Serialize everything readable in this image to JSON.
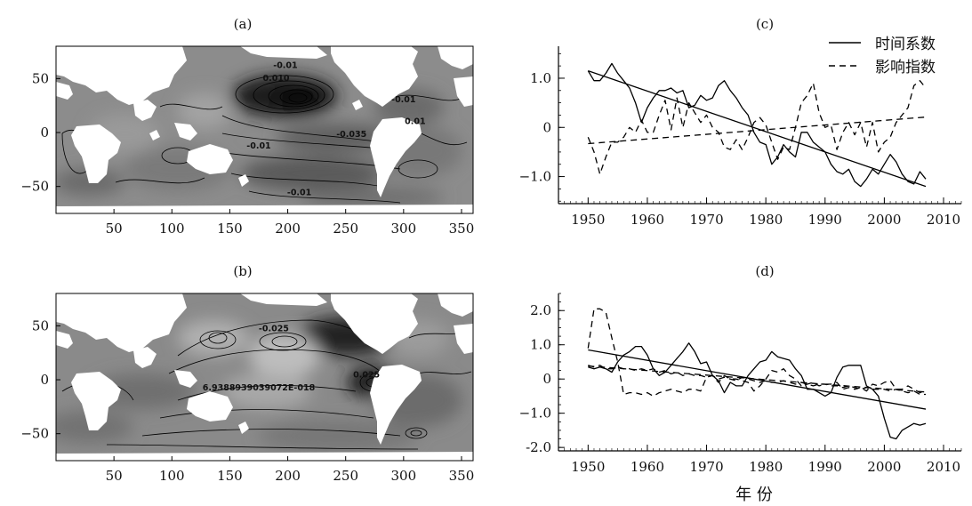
{
  "chart_data": [
    {
      "panel": "(a)",
      "type": "heatmap",
      "title": "(a)",
      "x_ticks": [
        50,
        100,
        150,
        200,
        250,
        300,
        350
      ],
      "y_ticks": [
        50,
        0,
        -50
      ],
      "y_tick_labels": [
        "50",
        "0",
        "−50"
      ],
      "xlim": [
        0,
        360
      ],
      "ylim": [
        -75,
        80
      ],
      "contour_labels": [
        {
          "text": "-0.01",
          "lon": 198,
          "lat": 60
        },
        {
          "text": "0.010",
          "lon": 190,
          "lat": 48
        },
        {
          "text": "-0.01",
          "lon": 300,
          "lat": 28
        },
        {
          "text": "0.01",
          "lon": 310,
          "lat": 8
        },
        {
          "text": "-0.035",
          "lon": 255,
          "lat": -4
        },
        {
          "text": "-0.01",
          "lon": 175,
          "lat": -15
        },
        {
          "text": "-0.01",
          "lon": 210,
          "lat": -58
        }
      ]
    },
    {
      "panel": "(b)",
      "type": "heatmap",
      "title": "(b)",
      "x_ticks": [
        50,
        100,
        150,
        200,
        250,
        300,
        350
      ],
      "y_ticks": [
        50,
        0,
        -50
      ],
      "y_tick_labels": [
        "50",
        "0",
        "−50"
      ],
      "xlim": [
        0,
        360
      ],
      "ylim": [
        -75,
        80
      ],
      "contour_labels": [
        {
          "text": "-0.025",
          "lon": 188,
          "lat": 45
        },
        {
          "text": "0.025",
          "lon": 268,
          "lat": 2
        },
        {
          "text": "6.9388939039072E-018",
          "lon": 175,
          "lat": -10
        }
      ]
    },
    {
      "panel": "(c)",
      "type": "line",
      "title": "(c)",
      "x_ticks": [
        1950,
        1960,
        1970,
        1980,
        1990,
        2000,
        2010
      ],
      "y_ticks": [
        1.0,
        0,
        -1.0
      ],
      "y_tick_labels": [
        "1.0",
        "0",
        "−1.0"
      ],
      "xlim": [
        1945,
        2013
      ],
      "ylim": [
        -1.55,
        1.65
      ],
      "legend": [
        "时间系数",
        "影响指数"
      ],
      "legend_position": "top-right",
      "x": [
        1950,
        1951,
        1952,
        1953,
        1954,
        1955,
        1956,
        1957,
        1958,
        1959,
        1960,
        1961,
        1962,
        1963,
        1964,
        1965,
        1966,
        1967,
        1968,
        1969,
        1970,
        1971,
        1972,
        1973,
        1974,
        1975,
        1976,
        1977,
        1978,
        1979,
        1980,
        1981,
        1982,
        1983,
        1984,
        1985,
        1986,
        1987,
        1988,
        1989,
        1990,
        1991,
        1992,
        1993,
        1994,
        1995,
        1996,
        1997,
        1998,
        1999,
        2000,
        2001,
        2002,
        2003,
        2004,
        2005,
        2006,
        2007
      ],
      "series": [
        {
          "name": "时间系数",
          "style": "solid",
          "values": [
            1.15,
            0.95,
            0.95,
            1.1,
            1.3,
            1.1,
            0.95,
            0.8,
            0.5,
            0.1,
            0.4,
            0.6,
            0.75,
            0.75,
            0.8,
            0.7,
            0.75,
            0.4,
            0.45,
            0.65,
            0.55,
            0.6,
            0.85,
            0.95,
            0.75,
            0.6,
            0.4,
            0.25,
            -0.1,
            -0.3,
            -0.35,
            -0.75,
            -0.6,
            -0.35,
            -0.5,
            -0.6,
            -0.1,
            -0.1,
            -0.3,
            -0.4,
            -0.5,
            -0.75,
            -0.9,
            -0.95,
            -0.85,
            -1.1,
            -1.2,
            -1.05,
            -0.85,
            -0.95,
            -0.75,
            -0.55,
            -0.7,
            -0.95,
            -1.1,
            -1.15,
            -0.9,
            -1.05
          ]
        },
        {
          "name": "影响指数",
          "style": "dashed",
          "values": [
            -0.2,
            -0.5,
            -0.95,
            -0.6,
            -0.3,
            -0.3,
            -0.2,
            0.0,
            -0.1,
            0.15,
            -0.1,
            -0.1,
            0.25,
            0.55,
            -0.05,
            0.6,
            0.0,
            0.5,
            0.3,
            0.1,
            0.25,
            0.0,
            -0.1,
            -0.4,
            -0.45,
            -0.25,
            -0.45,
            -0.2,
            0.1,
            0.2,
            0.05,
            -0.3,
            -0.65,
            -0.4,
            -0.45,
            0.0,
            0.5,
            0.65,
            0.9,
            0.3,
            0.0,
            0.05,
            -0.45,
            -0.1,
            0.1,
            -0.15,
            0.1,
            -0.4,
            0.1,
            -0.5,
            -0.3,
            -0.2,
            0.1,
            0.25,
            0.4,
            0.85,
            0.95,
            0.8
          ]
        },
        {
          "name": "时间系数 trend",
          "style": "solid",
          "trend": [
            1.15,
            -1.2
          ]
        },
        {
          "name": "影响指数 trend",
          "style": "dashed",
          "trend": [
            -0.33,
            0.21
          ]
        }
      ]
    },
    {
      "panel": "(d)",
      "type": "line",
      "title": "(d)",
      "x_ticks": [
        1950,
        1960,
        1970,
        1980,
        1990,
        2000,
        2010
      ],
      "y_ticks": [
        2.0,
        1.0,
        0,
        -1.0,
        -2.0
      ],
      "y_tick_labels": [
        "2.0",
        "1.0",
        "0",
        "−1.0",
        "-2.0"
      ],
      "xlim": [
        1945,
        2013
      ],
      "ylim": [
        -2.1,
        2.5
      ],
      "xlabel": "年 份",
      "x": [
        1950,
        1951,
        1952,
        1953,
        1954,
        1955,
        1956,
        1957,
        1958,
        1959,
        1960,
        1961,
        1962,
        1963,
        1964,
        1965,
        1966,
        1967,
        1968,
        1969,
        1970,
        1971,
        1972,
        1973,
        1974,
        1975,
        1976,
        1977,
        1978,
        1979,
        1980,
        1981,
        1982,
        1983,
        1984,
        1985,
        1986,
        1987,
        1988,
        1989,
        1990,
        1991,
        1992,
        1993,
        1994,
        1995,
        1996,
        1997,
        1998,
        1999,
        2000,
        2001,
        2002,
        2003,
        2004,
        2005,
        2006,
        2007
      ],
      "series": [
        {
          "name": "时间系数",
          "style": "solid",
          "values": [
            0.35,
            0.3,
            0.35,
            0.3,
            0.2,
            0.5,
            0.7,
            0.8,
            0.95,
            0.95,
            0.7,
            0.3,
            0.1,
            0.2,
            0.4,
            0.6,
            0.8,
            1.05,
            0.8,
            0.45,
            0.5,
            0.1,
            -0.05,
            -0.4,
            -0.1,
            -0.2,
            -0.2,
            0.1,
            0.3,
            0.5,
            0.55,
            0.8,
            0.65,
            0.6,
            0.55,
            0.3,
            0.1,
            -0.3,
            -0.3,
            -0.4,
            -0.5,
            -0.4,
            0.05,
            0.35,
            0.4,
            0.4,
            0.4,
            -0.2,
            -0.3,
            -0.5,
            -1.15,
            -1.7,
            -1.75,
            -1.5,
            -1.4,
            -1.3,
            -1.35,
            -1.3
          ]
        },
        {
          "name": "影响指数 1",
          "style": "dashed",
          "values": [
            0.9,
            2.05,
            2.05,
            1.95,
            1.2,
            0.5,
            -0.45,
            -0.4,
            -0.4,
            -0.45,
            -0.4,
            -0.5,
            -0.4,
            -0.35,
            -0.3,
            -0.35,
            -0.4,
            -0.3,
            -0.3,
            -0.35,
            0.05,
            0.1,
            -0.1,
            0.1,
            0.0,
            0.0,
            -0.05,
            -0.1,
            -0.35,
            -0.2,
            0.0,
            0.25,
            0.2,
            0.3,
            0.1,
            0.0,
            -0.2,
            -0.15,
            -0.1,
            -0.2,
            -0.15,
            -0.15,
            -0.1,
            -0.3,
            -0.25,
            -0.3,
            -0.25,
            -0.35,
            -0.15,
            -0.2,
            -0.1,
            -0.05,
            -0.3,
            -0.3,
            -0.2,
            -0.3,
            -0.4,
            -0.35
          ]
        },
        {
          "name": "影响指数 2",
          "style": "dashed",
          "values": [
            0.4,
            0.35,
            0.4,
            0.3,
            0.3,
            0.35,
            0.3,
            0.3,
            0.25,
            0.3,
            0.25,
            0.3,
            0.2,
            0.25,
            0.15,
            0.2,
            0.1,
            0.15,
            0.1,
            0.1,
            0.05,
            0.1,
            0.0,
            0.05,
            0.0,
            -0.05,
            0.05,
            0.0,
            -0.05,
            -0.1,
            -0.05,
            -0.1,
            -0.1,
            -0.05,
            -0.1,
            -0.15,
            -0.1,
            -0.15,
            -0.2,
            -0.15,
            -0.15,
            -0.2,
            -0.2,
            -0.25,
            -0.2,
            -0.25,
            -0.3,
            -0.25,
            -0.3,
            -0.3,
            -0.3,
            -0.35,
            -0.3,
            -0.35,
            -0.4,
            -0.35,
            -0.45,
            -0.45
          ]
        },
        {
          "name": "时间系数 trend",
          "style": "solid",
          "trend": [
            0.85,
            -0.88
          ]
        },
        {
          "name": "影响指数 trend",
          "style": "dashed",
          "trend": [
            0.38,
            -0.38
          ]
        }
      ]
    }
  ]
}
